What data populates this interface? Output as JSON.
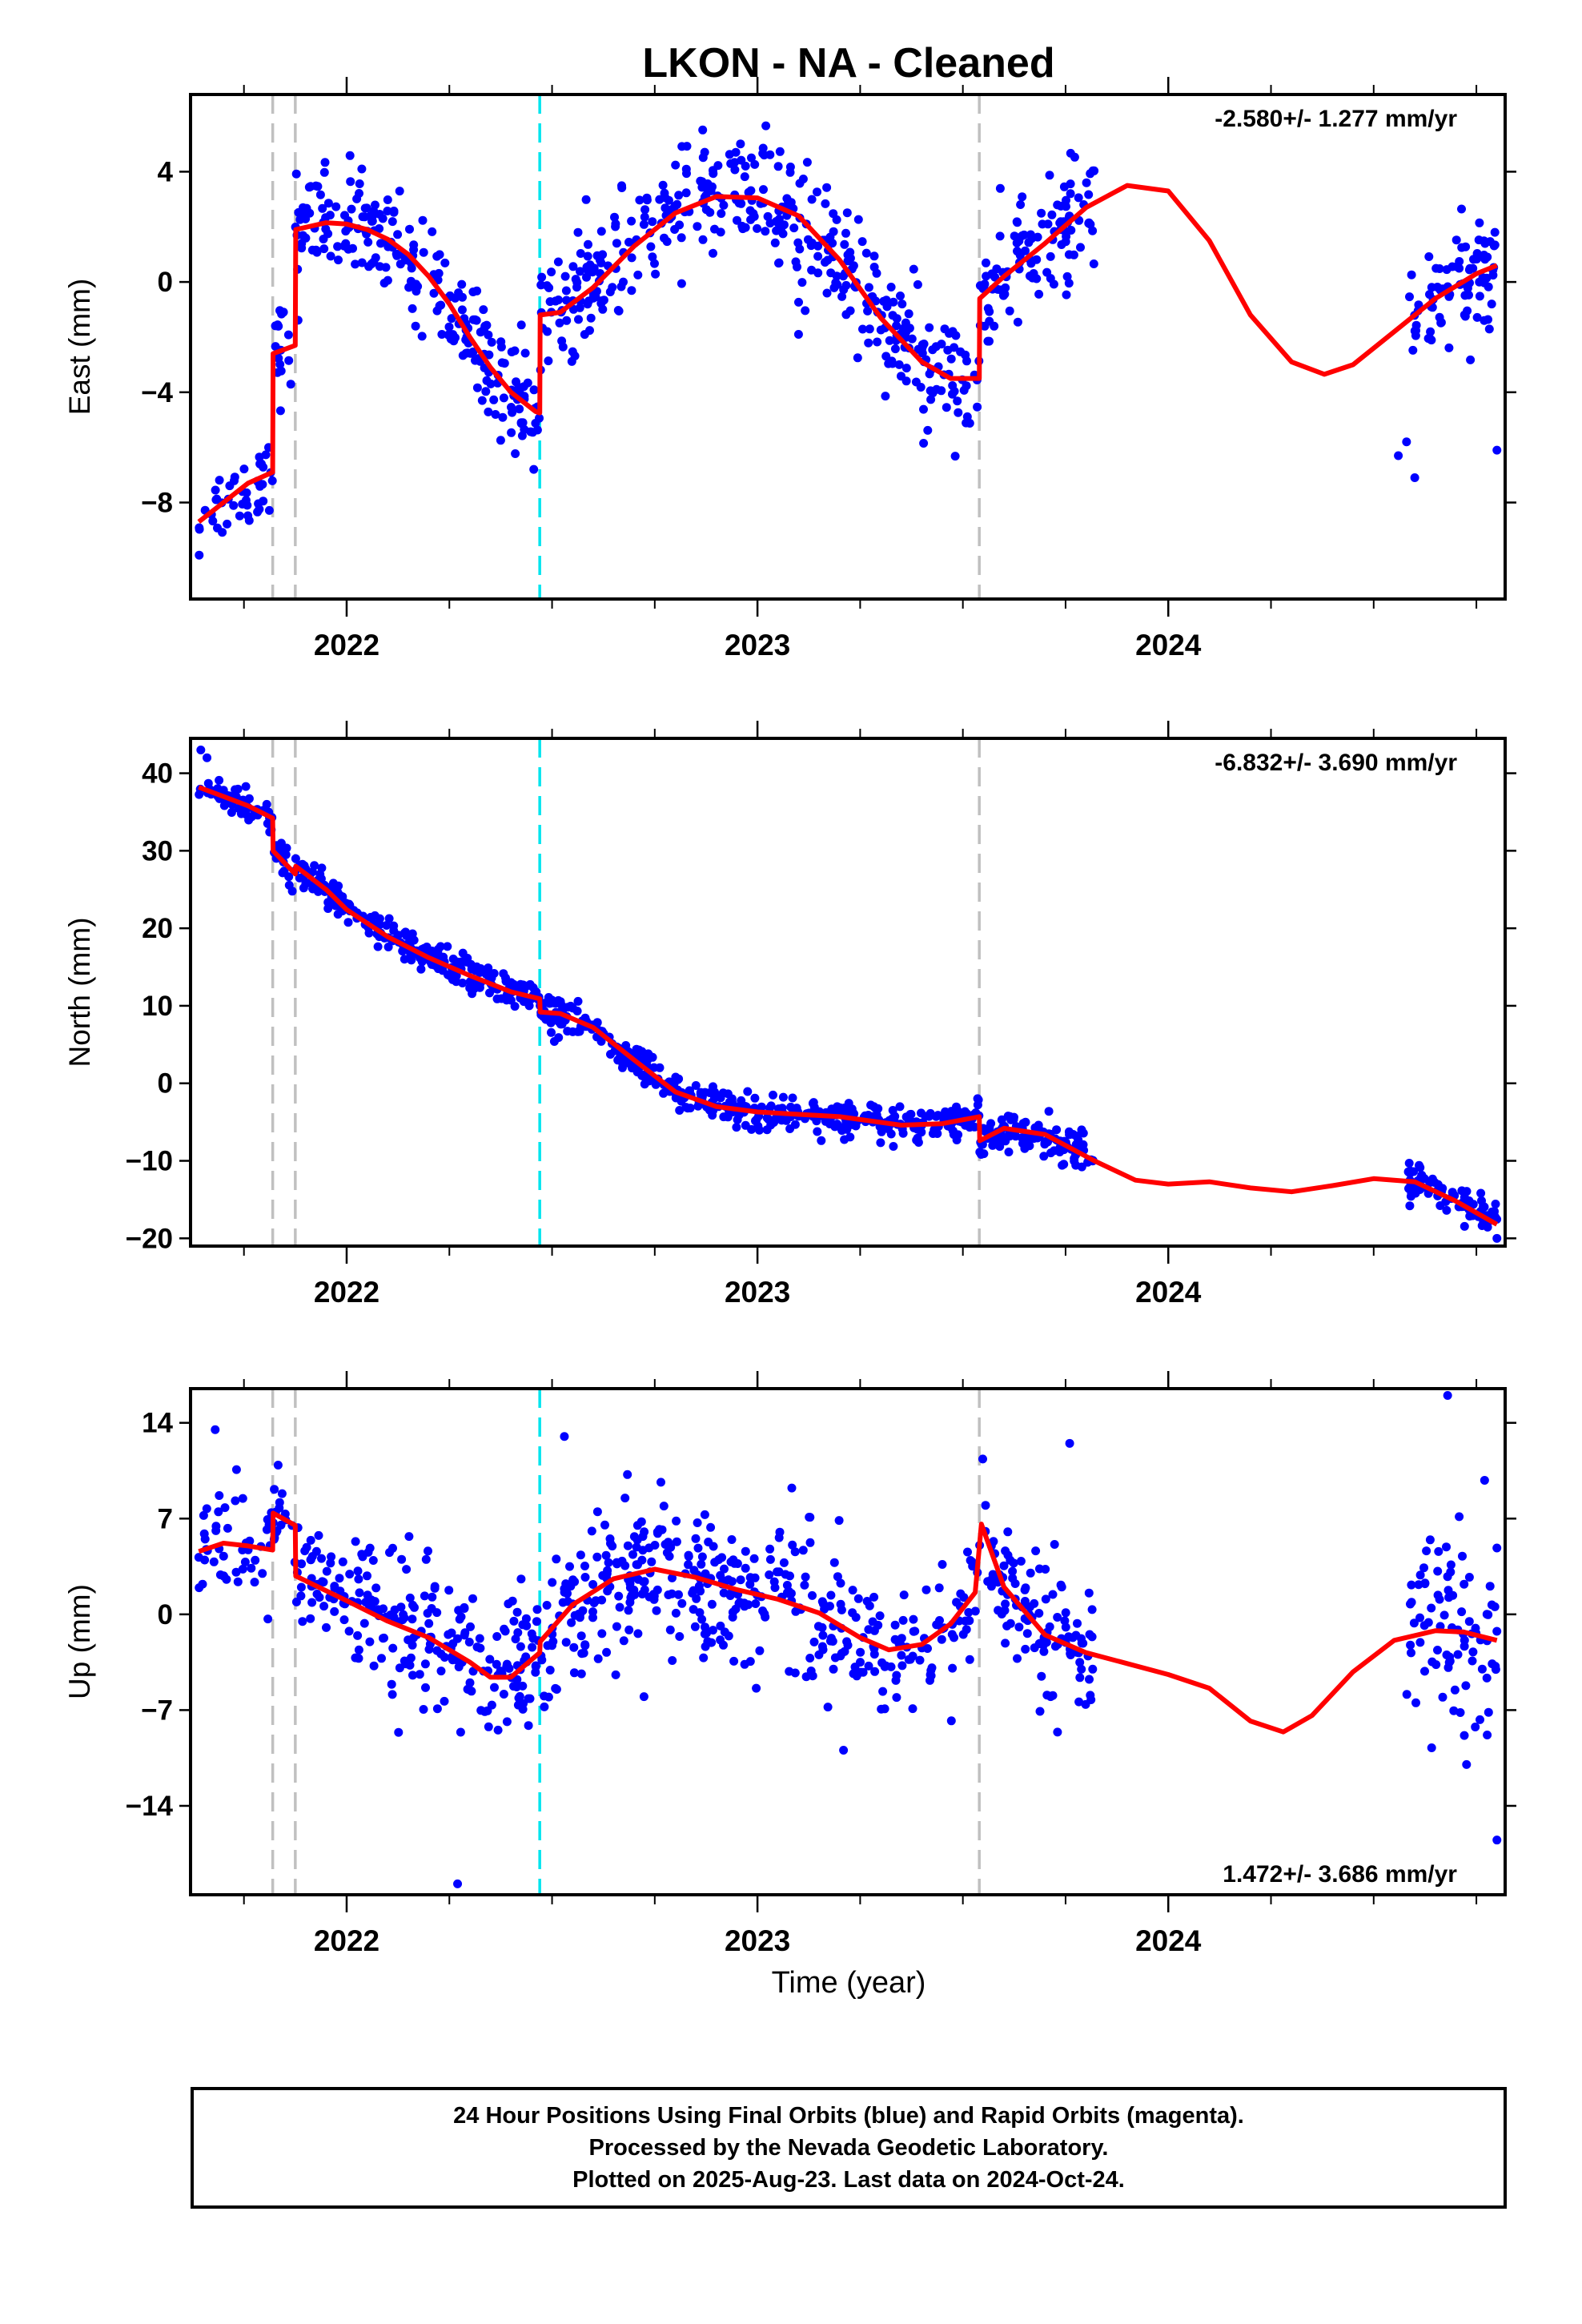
{
  "title": "LKON  - NA - Cleaned",
  "xlabel": "Time (year)",
  "colors": {
    "points": "#0000ff",
    "fit": "#ff0000",
    "event_gray": "#c0c0c0",
    "event_cyan": "#00e5ee"
  },
  "chart_data": [
    {
      "type": "scatter",
      "component": "east",
      "ylabel": "East (mm)",
      "rate_label": "-2.580+/- 1.277 mm/yr",
      "rate_position": "top-right",
      "xlim": [
        2021.62,
        2024.82
      ],
      "ylim": [
        -11.5,
        6.8
      ],
      "yticks": [
        -8,
        -4,
        0,
        4
      ],
      "ytick_labels": [
        "−8",
        "−4",
        "0",
        "4"
      ],
      "xticks": [
        2022,
        2023,
        2024
      ],
      "xtick_labels": [
        "2022",
        "2023",
        "2024"
      ],
      "events_gray": [
        2021.82,
        2021.875,
        2023.54
      ],
      "events_cyan": [
        2022.47
      ],
      "fit": [
        [
          2021.64,
          -8.7
        ],
        [
          2021.7,
          -8.0
        ],
        [
          2021.76,
          -7.3
        ],
        [
          2021.82,
          -6.9
        ],
        [
          2021.821,
          -2.6
        ],
        [
          2021.875,
          -2.3
        ],
        [
          2021.876,
          1.9
        ],
        [
          2021.95,
          2.15
        ],
        [
          2022.0,
          2.1
        ],
        [
          2022.05,
          1.9
        ],
        [
          2022.1,
          1.55
        ],
        [
          2022.15,
          1.0
        ],
        [
          2022.2,
          0.2
        ],
        [
          2022.25,
          -0.8
        ],
        [
          2022.3,
          -2.0
        ],
        [
          2022.35,
          -3.1
        ],
        [
          2022.4,
          -4.0
        ],
        [
          2022.46,
          -4.7
        ],
        [
          2022.47,
          -4.75
        ],
        [
          2022.471,
          -1.2
        ],
        [
          2022.52,
          -1.1
        ],
        [
          2022.6,
          -0.2
        ],
        [
          2022.7,
          1.3
        ],
        [
          2022.8,
          2.5
        ],
        [
          2022.9,
          3.1
        ],
        [
          2023.0,
          3.05
        ],
        [
          2023.1,
          2.4
        ],
        [
          2023.2,
          0.8
        ],
        [
          2023.3,
          -1.3
        ],
        [
          2023.4,
          -2.9
        ],
        [
          2023.47,
          -3.5
        ],
        [
          2023.54,
          -3.5
        ],
        [
          2023.541,
          -0.6
        ],
        [
          2023.6,
          0.2
        ],
        [
          2023.7,
          1.4
        ],
        [
          2023.8,
          2.7
        ],
        [
          2023.9,
          3.5
        ],
        [
          2024.0,
          3.3
        ],
        [
          2024.1,
          1.5
        ],
        [
          2024.2,
          -1.2
        ],
        [
          2024.3,
          -2.9
        ],
        [
          2024.38,
          -3.35
        ],
        [
          2024.45,
          -3.0
        ],
        [
          2024.55,
          -1.8
        ],
        [
          2024.65,
          -0.6
        ],
        [
          2024.75,
          0.3
        ],
        [
          2024.8,
          0.6
        ]
      ],
      "scatter": {
        "segments": [
          {
            "x_start": 2021.64,
            "x_end": 2021.82,
            "count": 45,
            "noise": 0.75
          },
          {
            "x_start": 2021.82,
            "x_end": 2021.875,
            "count": 16,
            "noise": 0.9
          },
          {
            "x_start": 2021.875,
            "x_end": 2022.47,
            "count": 230,
            "noise": 0.95
          },
          {
            "x_start": 2022.47,
            "x_end": 2023.54,
            "count": 400,
            "noise": 1.1
          },
          {
            "x_start": 2023.54,
            "x_end": 2023.82,
            "count": 110,
            "noise": 1.05
          },
          {
            "x_start": 2024.58,
            "x_end": 2024.8,
            "count": 85,
            "noise": 1.05
          }
        ],
        "outliers": [
          [
            2024.56,
            -6.3
          ],
          [
            2024.58,
            -5.8
          ],
          [
            2024.6,
            -7.1
          ],
          [
            2024.8,
            -6.1
          ],
          [
            2023.1,
            -1.9
          ],
          [
            2022.33,
            -4.3
          ]
        ]
      }
    },
    {
      "type": "scatter",
      "component": "north",
      "ylabel": "North (mm)",
      "rate_label": "-6.832+/- 3.690 mm/yr",
      "rate_position": "top-right",
      "xlim": [
        2021.62,
        2024.82
      ],
      "ylim": [
        -21,
        44.5
      ],
      "yticks": [
        -20,
        -10,
        0,
        10,
        20,
        30,
        40
      ],
      "ytick_labels": [
        "−20",
        "−10",
        "0",
        "10",
        "20",
        "30",
        "40"
      ],
      "xticks": [
        2022,
        2023,
        2024
      ],
      "xtick_labels": [
        "2022",
        "2023",
        "2024"
      ],
      "events_gray": [
        2021.82,
        2021.875,
        2023.54
      ],
      "events_cyan": [
        2022.47
      ],
      "fit": [
        [
          2021.64,
          38.2
        ],
        [
          2021.7,
          37.0
        ],
        [
          2021.76,
          35.8
        ],
        [
          2021.82,
          34.2
        ],
        [
          2021.821,
          30.0
        ],
        [
          2021.875,
          27.0
        ],
        [
          2021.876,
          28.0
        ],
        [
          2021.95,
          25.0
        ],
        [
          2022.0,
          22.4
        ],
        [
          2022.1,
          18.9
        ],
        [
          2022.2,
          16.2
        ],
        [
          2022.3,
          13.9
        ],
        [
          2022.4,
          11.8
        ],
        [
          2022.47,
          10.9
        ],
        [
          2022.471,
          9.2
        ],
        [
          2022.52,
          9.0
        ],
        [
          2022.6,
          7.2
        ],
        [
          2022.7,
          3.0
        ],
        [
          2022.8,
          -1.1
        ],
        [
          2022.9,
          -3.0
        ],
        [
          2023.0,
          -3.7
        ],
        [
          2023.2,
          -4.3
        ],
        [
          2023.35,
          -5.4
        ],
        [
          2023.45,
          -5.2
        ],
        [
          2023.54,
          -4.3
        ],
        [
          2023.541,
          -7.4
        ],
        [
          2023.6,
          -5.8
        ],
        [
          2023.7,
          -6.6
        ],
        [
          2023.82,
          -10.0
        ],
        [
          2023.92,
          -12.5
        ],
        [
          2024.0,
          -13.0
        ],
        [
          2024.1,
          -12.7
        ],
        [
          2024.2,
          -13.5
        ],
        [
          2024.3,
          -14.0
        ],
        [
          2024.4,
          -13.2
        ],
        [
          2024.5,
          -12.3
        ],
        [
          2024.6,
          -12.7
        ],
        [
          2024.7,
          -15.2
        ],
        [
          2024.8,
          -18.2
        ]
      ],
      "scatter": {
        "segments": [
          {
            "x_start": 2021.64,
            "x_end": 2021.82,
            "count": 60,
            "noise": 1.0
          },
          {
            "x_start": 2021.82,
            "x_end": 2021.875,
            "count": 16,
            "noise": 1.0
          },
          {
            "x_start": 2021.875,
            "x_end": 2022.47,
            "count": 230,
            "noise": 1.1
          },
          {
            "x_start": 2022.47,
            "x_end": 2023.54,
            "count": 400,
            "noise": 1.1
          },
          {
            "x_start": 2023.54,
            "x_end": 2023.82,
            "count": 110,
            "noise": 1.2
          },
          {
            "x_start": 2024.58,
            "x_end": 2024.8,
            "count": 85,
            "noise": 1.3
          }
        ],
        "outliers": [
          [
            2021.645,
            43.0
          ],
          [
            2021.66,
            42.0
          ],
          [
            2024.8,
            -20.0
          ]
        ]
      }
    },
    {
      "type": "scatter",
      "component": "up",
      "ylabel": "Up (mm)",
      "rate_label": "1.472+/- 3.686 mm/yr",
      "rate_position": "bottom-right",
      "xlim": [
        2021.62,
        2024.82
      ],
      "ylim": [
        -20.5,
        16.5
      ],
      "yticks": [
        -14,
        -7,
        0,
        7,
        14
      ],
      "ytick_labels": [
        "−14",
        "−7",
        "0",
        "7",
        "14"
      ],
      "xticks": [
        2022,
        2023,
        2024
      ],
      "xtick_labels": [
        "2022",
        "2023",
        "2024"
      ],
      "events_gray": [
        2021.82,
        2021.875,
        2023.54
      ],
      "events_cyan": [
        2022.47
      ],
      "fit": [
        [
          2021.64,
          4.6
        ],
        [
          2021.7,
          5.2
        ],
        [
          2021.76,
          5.0
        ],
        [
          2021.82,
          4.7
        ],
        [
          2021.821,
          7.4
        ],
        [
          2021.875,
          6.5
        ],
        [
          2021.876,
          2.8
        ],
        [
          2022.0,
          1.0
        ],
        [
          2022.1,
          -0.5
        ],
        [
          2022.2,
          -1.7
        ],
        [
          2022.3,
          -3.5
        ],
        [
          2022.35,
          -4.6
        ],
        [
          2022.4,
          -4.6
        ],
        [
          2022.47,
          -2.8
        ],
        [
          2022.471,
          -2.0
        ],
        [
          2022.55,
          0.7
        ],
        [
          2022.65,
          2.6
        ],
        [
          2022.75,
          3.3
        ],
        [
          2022.85,
          2.7
        ],
        [
          2022.95,
          1.8
        ],
        [
          2023.05,
          1.1
        ],
        [
          2023.15,
          0.1
        ],
        [
          2023.25,
          -1.7
        ],
        [
          2023.32,
          -2.6
        ],
        [
          2023.4,
          -2.2
        ],
        [
          2023.47,
          -0.7
        ],
        [
          2023.53,
          1.6
        ],
        [
          2023.545,
          6.6
        ],
        [
          2023.6,
          2.0
        ],
        [
          2023.7,
          -1.5
        ],
        [
          2023.8,
          -2.8
        ],
        [
          2023.9,
          -3.6
        ],
        [
          2024.0,
          -4.4
        ],
        [
          2024.1,
          -5.4
        ],
        [
          2024.2,
          -7.8
        ],
        [
          2024.28,
          -8.6
        ],
        [
          2024.35,
          -7.4
        ],
        [
          2024.45,
          -4.2
        ],
        [
          2024.55,
          -1.9
        ],
        [
          2024.65,
          -1.2
        ],
        [
          2024.72,
          -1.3
        ],
        [
          2024.8,
          -1.9
        ]
      ],
      "scatter": {
        "segments": [
          {
            "x_start": 2021.64,
            "x_end": 2021.82,
            "count": 45,
            "noise": 2.2
          },
          {
            "x_start": 2021.82,
            "x_end": 2021.875,
            "count": 16,
            "noise": 2.4
          },
          {
            "x_start": 2021.875,
            "x_end": 2022.47,
            "count": 230,
            "noise": 2.6
          },
          {
            "x_start": 2022.47,
            "x_end": 2023.54,
            "count": 400,
            "noise": 2.7
          },
          {
            "x_start": 2023.54,
            "x_end": 2023.82,
            "count": 110,
            "noise": 2.9
          },
          {
            "x_start": 2024.58,
            "x_end": 2024.8,
            "count": 85,
            "noise": 3.2
          }
        ],
        "outliers": [
          [
            2021.68,
            13.5
          ],
          [
            2022.27,
            -19.7
          ],
          [
            2024.68,
            16.0
          ],
          [
            2024.8,
            -16.5
          ],
          [
            2022.53,
            13.0
          ],
          [
            2023.76,
            12.5
          ],
          [
            2024.77,
            9.8
          ]
        ]
      }
    }
  ],
  "caption": {
    "line1": "24 Hour Positions Using Final Orbits (blue) and Rapid Orbits (magenta).",
    "line2": "Processed by the Nevada Geodetic Laboratory.",
    "line3": "Plotted on 2025-Aug-23. Last data on 2024-Oct-24."
  }
}
